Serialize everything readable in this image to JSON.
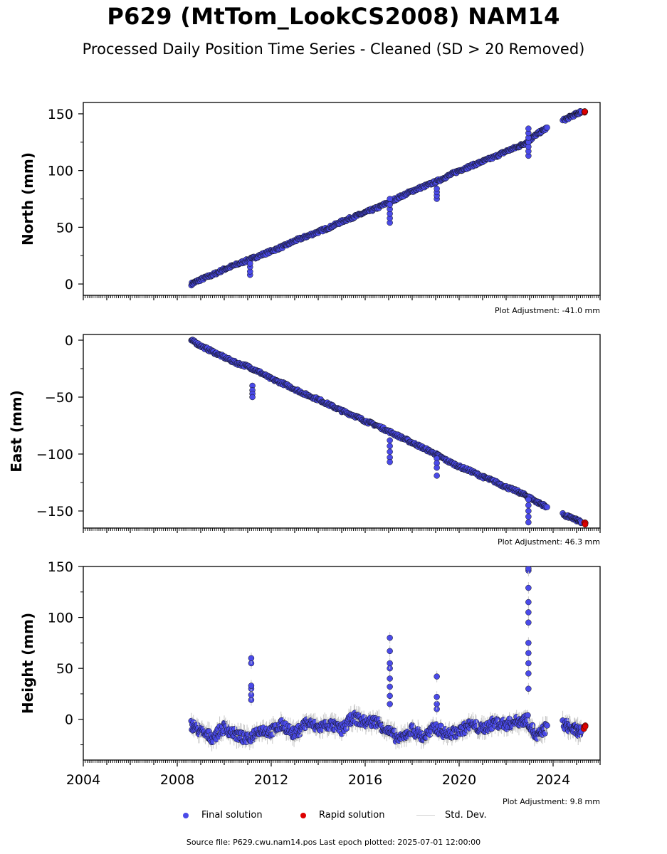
{
  "title": "P629 (MtTom_LookCS2008) NAM14",
  "subtitle": "Processed Daily Position Time Series - Cleaned (SD > 20 Removed)",
  "legend": {
    "final": "Final solution",
    "rapid": "Rapid solution",
    "std": "Std. Dev."
  },
  "footer": "Source file: P629.cwu.nam14.pos  Last epoch plotted: 2025-07-01 12:00:00",
  "colors": {
    "final": "#4a4ae8",
    "rapid": "#dd0000",
    "std": "#c8c8c8"
  },
  "chart_data": [
    {
      "type": "scatter",
      "ylabel": "North (mm)",
      "adjustment": "Plot Adjustment: -41.0 mm",
      "xlim": [
        2004.0,
        2026.0
      ],
      "ylim": [
        -10,
        160
      ],
      "yticks": [
        0,
        50,
        100,
        150
      ],
      "xticks": [],
      "series": [
        {
          "name": "Final solution",
          "x": [
            2008.6,
            2009.0,
            2009.5,
            2010.0,
            2010.5,
            2011.0,
            2011.5,
            2012.0,
            2012.5,
            2013.0,
            2013.5,
            2014.0,
            2014.5,
            2015.0,
            2015.5,
            2016.0,
            2016.5,
            2017.0,
            2017.5,
            2018.0,
            2018.5,
            2019.0,
            2019.5,
            2020.0,
            2020.5,
            2021.0,
            2021.5,
            2022.0,
            2022.5,
            2022.9,
            2023.3,
            2023.7,
            2024.5,
            2024.9,
            2025.2
          ],
          "y": [
            0,
            4,
            8,
            13,
            17,
            21,
            25,
            29,
            33,
            38,
            42,
            46,
            50,
            55,
            59,
            63,
            67,
            72,
            77,
            82,
            86,
            90,
            95,
            100,
            104,
            108,
            112,
            117,
            121,
            125,
            132,
            137,
            145,
            149,
            152
          ]
        },
        {
          "name": "Rapid solution",
          "x": [
            2025.35
          ],
          "y": [
            152
          ]
        }
      ],
      "outliers": [
        {
          "x": 2011.1,
          "y": [
            8,
            11,
            15,
            18
          ]
        },
        {
          "x": 2017.05,
          "y": [
            54,
            58,
            62,
            66,
            70,
            75
          ]
        },
        {
          "x": 2019.05,
          "y": [
            75,
            78,
            81,
            84
          ]
        },
        {
          "x": 2022.95,
          "y": [
            113,
            117,
            121,
            125,
            129,
            133,
            137
          ]
        }
      ]
    },
    {
      "type": "scatter",
      "ylabel": "East (mm)",
      "adjustment": "Plot Adjustment: 46.3 mm",
      "xlim": [
        2004.0,
        2026.0
      ],
      "ylim": [
        -165,
        5
      ],
      "yticks": [
        0,
        -50,
        -100,
        -150
      ],
      "xticks": [],
      "series": [
        {
          "name": "Final solution",
          "x": [
            2008.6,
            2009.0,
            2009.5,
            2010.0,
            2010.5,
            2011.0,
            2011.5,
            2012.0,
            2012.5,
            2013.0,
            2013.5,
            2014.0,
            2014.5,
            2015.0,
            2015.5,
            2016.0,
            2016.5,
            2017.0,
            2017.5,
            2018.0,
            2018.5,
            2019.0,
            2019.5,
            2020.0,
            2020.5,
            2021.0,
            2021.5,
            2022.0,
            2022.5,
            2022.9,
            2023.3,
            2023.7,
            2024.5,
            2024.9,
            2025.2
          ],
          "y": [
            0,
            -5,
            -10,
            -15,
            -20,
            -23,
            -28,
            -34,
            -38,
            -43,
            -48,
            -52,
            -57,
            -62,
            -66,
            -71,
            -75,
            -80,
            -85,
            -90,
            -95,
            -100,
            -106,
            -111,
            -115,
            -120,
            -124,
            -129,
            -133,
            -137,
            -142,
            -146,
            -154,
            -157,
            -160
          ]
        },
        {
          "name": "Rapid solution",
          "x": [
            2025.35
          ],
          "y": [
            -161
          ]
        }
      ],
      "outliers": [
        {
          "x": 2011.2,
          "y": [
            -40,
            -44,
            -47,
            -50
          ]
        },
        {
          "x": 2017.05,
          "y": [
            -88,
            -93,
            -98,
            -103,
            -107
          ]
        },
        {
          "x": 2019.05,
          "y": [
            -104,
            -108,
            -112,
            -119
          ]
        },
        {
          "x": 2022.95,
          "y": [
            -140,
            -145,
            -150,
            -155,
            -160
          ]
        }
      ]
    },
    {
      "type": "scatter",
      "ylabel": "Height (mm)",
      "adjustment": "Plot Adjustment: 9.8 mm",
      "xlim": [
        2004.0,
        2026.0
      ],
      "ylim": [
        -40,
        150
      ],
      "yticks": [
        0,
        50,
        100,
        150
      ],
      "xticks": [
        2004,
        2008,
        2012,
        2016,
        2020,
        2024
      ],
      "series": [
        {
          "name": "Final solution",
          "x": [
            2008.6,
            2009.0,
            2009.5,
            2010.0,
            2010.5,
            2011.0,
            2011.5,
            2012.0,
            2012.5,
            2013.0,
            2013.5,
            2014.0,
            2014.5,
            2015.0,
            2015.5,
            2016.0,
            2016.5,
            2017.0,
            2017.5,
            2018.0,
            2018.5,
            2019.0,
            2019.5,
            2020.0,
            2020.5,
            2021.0,
            2021.5,
            2022.0,
            2022.5,
            2022.9,
            2023.3,
            2023.7,
            2024.5,
            2024.9,
            2025.2
          ],
          "y": [
            -5,
            -12,
            -18,
            -8,
            -15,
            -20,
            -10,
            -12,
            -5,
            -15,
            -3,
            -8,
            -5,
            -10,
            2,
            -3,
            -2,
            -12,
            -20,
            -10,
            -18,
            -8,
            -15,
            -12,
            -5,
            -10,
            -3,
            -5,
            -2,
            0,
            -18,
            -8,
            -5,
            -10,
            -12
          ]
        },
        {
          "name": "Rapid solution",
          "x": [
            2025.35
          ],
          "y": [
            -10
          ]
        }
      ],
      "outliers": [
        {
          "x": 2011.15,
          "y": [
            19,
            24,
            30,
            33,
            55,
            60
          ]
        },
        {
          "x": 2017.05,
          "y": [
            15,
            23,
            32,
            40,
            50,
            55,
            67,
            80
          ]
        },
        {
          "x": 2019.05,
          "y": [
            10,
            15,
            22,
            42
          ]
        },
        {
          "x": 2022.95,
          "y": [
            30,
            45,
            55,
            65,
            75,
            95,
            105,
            115,
            129,
            146,
            148
          ]
        }
      ]
    }
  ]
}
